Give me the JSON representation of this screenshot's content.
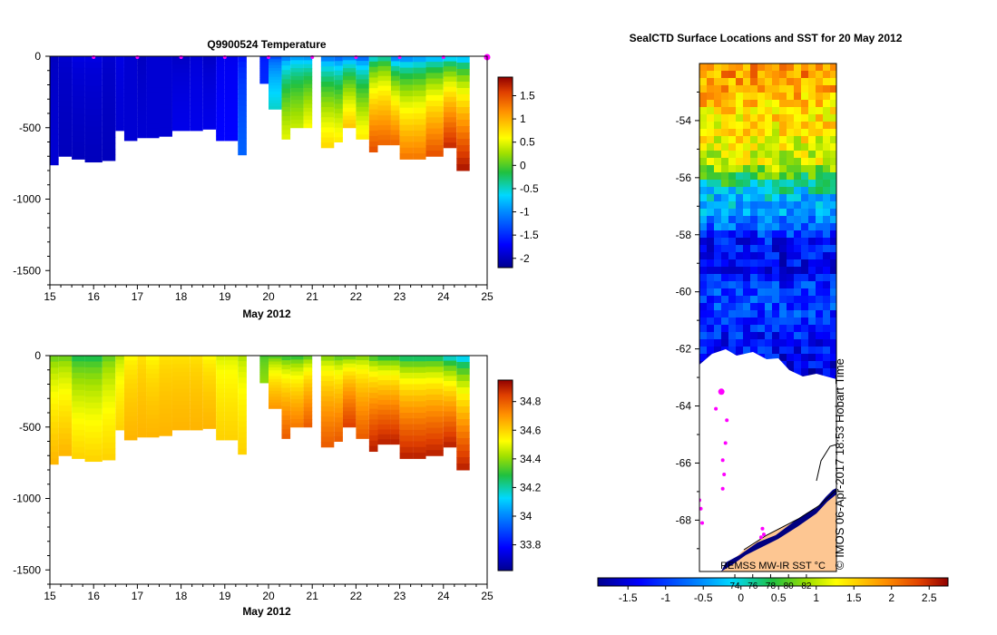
{
  "chart_data": [
    {
      "type": "heatmap",
      "title": "Q9900524  Temperature",
      "xlabel": "May 2012",
      "x_ticks": [
        "15",
        "16",
        "17",
        "18",
        "19",
        "20",
        "21",
        "22",
        "23",
        "24",
        "25"
      ],
      "xlim": [
        15,
        25
      ],
      "ylim": [
        -1600,
        0
      ],
      "y_ticks": [
        "0",
        "-500",
        "-1000",
        "-1500"
      ],
      "colorbar": {
        "ticks": [
          "1.5",
          "1",
          "0.5",
          "0",
          "-0.5",
          "-1",
          "-1.5",
          "-2"
        ],
        "range": [
          -2.2,
          1.9
        ]
      },
      "profile_days": [
        16,
        17,
        18,
        19,
        20,
        21,
        22,
        23,
        24,
        25
      ],
      "profiles": [
        {
          "x0": 15.0,
          "x1": 15.2,
          "depth": 760,
          "surf": -2.0,
          "deep": -1.9
        },
        {
          "x0": 15.2,
          "x1": 15.5,
          "depth": 700,
          "surf": -1.9,
          "deep": -2.0
        },
        {
          "x0": 15.5,
          "x1": 15.8,
          "depth": 720,
          "surf": -1.8,
          "deep": -2.0
        },
        {
          "x0": 15.8,
          "x1": 16.2,
          "depth": 740,
          "surf": -1.8,
          "deep": -2.0
        },
        {
          "x0": 16.2,
          "x1": 16.5,
          "depth": 730,
          "surf": -1.9,
          "deep": -2.0
        },
        {
          "x0": 16.5,
          "x1": 16.7,
          "depth": 520,
          "surf": -1.8,
          "deep": -1.9
        },
        {
          "x0": 16.7,
          "x1": 17.0,
          "depth": 590,
          "surf": -1.9,
          "deep": -1.9
        },
        {
          "x0": 17.0,
          "x1": 17.2,
          "depth": 570,
          "surf": -2.0,
          "deep": -1.9
        },
        {
          "x0": 17.2,
          "x1": 17.5,
          "depth": 570,
          "surf": -1.9,
          "deep": -1.9
        },
        {
          "x0": 17.5,
          "x1": 17.8,
          "depth": 560,
          "surf": -1.9,
          "deep": -1.9
        },
        {
          "x0": 17.8,
          "x1": 18.2,
          "depth": 520,
          "surf": -2.0,
          "deep": -1.8
        },
        {
          "x0": 18.2,
          "x1": 18.5,
          "depth": 520,
          "surf": -1.9,
          "deep": -1.8
        },
        {
          "x0": 18.5,
          "x1": 18.8,
          "depth": 510,
          "surf": -2.0,
          "deep": -1.8
        },
        {
          "x0": 18.8,
          "x1": 19.0,
          "depth": 590,
          "surf": -1.8,
          "deep": -1.7
        },
        {
          "x0": 19.0,
          "x1": 19.3,
          "depth": 590,
          "surf": -1.8,
          "deep": -1.7
        },
        {
          "x0": 19.3,
          "x1": 19.5,
          "depth": 690,
          "surf": -1.7,
          "deep": -1.2
        },
        {
          "x0": 19.8,
          "x1": 20.0,
          "depth": 190,
          "surf": -1.6,
          "deep": -1.5
        },
        {
          "x0": 20.0,
          "x1": 20.3,
          "depth": 370,
          "surf": -1.5,
          "deep": -0.5
        },
        {
          "x0": 20.3,
          "x1": 20.5,
          "depth": 580,
          "surf": -1.4,
          "deep": 0.5
        },
        {
          "x0": 20.5,
          "x1": 20.8,
          "depth": 500,
          "surf": -1.2,
          "deep": 0.4
        },
        {
          "x0": 20.8,
          "x1": 21.0,
          "depth": 500,
          "surf": -1.3,
          "deep": 0.6
        },
        {
          "x0": 21.2,
          "x1": 21.5,
          "depth": 640,
          "surf": -1.5,
          "deep": 0.8
        },
        {
          "x0": 21.5,
          "x1": 21.7,
          "depth": 600,
          "surf": -1.6,
          "deep": 0.7
        },
        {
          "x0": 21.7,
          "x1": 22.0,
          "depth": 500,
          "surf": -1.5,
          "deep": 0.9
        },
        {
          "x0": 22.0,
          "x1": 22.3,
          "depth": 580,
          "surf": -1.6,
          "deep": 0.7
        },
        {
          "x0": 22.3,
          "x1": 22.5,
          "depth": 670,
          "surf": -1.0,
          "deep": 1.5
        },
        {
          "x0": 22.5,
          "x1": 22.8,
          "depth": 620,
          "surf": -0.8,
          "deep": 1.4
        },
        {
          "x0": 22.8,
          "x1": 23.0,
          "depth": 620,
          "surf": -1.6,
          "deep": 1.4
        },
        {
          "x0": 23.0,
          "x1": 23.3,
          "depth": 720,
          "surf": -1.5,
          "deep": 1.3
        },
        {
          "x0": 23.3,
          "x1": 23.6,
          "depth": 720,
          "surf": -1.4,
          "deep": 1.3
        },
        {
          "x0": 23.6,
          "x1": 24.0,
          "depth": 700,
          "surf": -1.3,
          "deep": 1.5
        },
        {
          "x0": 24.0,
          "x1": 24.3,
          "depth": 640,
          "surf": -1.2,
          "deep": 1.7
        },
        {
          "x0": 24.3,
          "x1": 24.6,
          "depth": 800,
          "surf": -1.3,
          "deep": 1.8
        }
      ]
    },
    {
      "type": "heatmap",
      "title": "",
      "xlabel": "May 2012",
      "x_ticks": [
        "15",
        "16",
        "17",
        "18",
        "19",
        "20",
        "21",
        "22",
        "23",
        "24",
        "25"
      ],
      "xlim": [
        15,
        25
      ],
      "ylim": [
        -1600,
        0
      ],
      "y_ticks": [
        "0",
        "-500",
        "-1000",
        "-1500"
      ],
      "colorbar": {
        "ticks": [
          "34.8",
          "34.6",
          "34.4",
          "34.2",
          "34",
          "33.8"
        ],
        "range": [
          33.62,
          34.95
        ]
      },
      "profiles": [
        {
          "x0": 15.0,
          "x1": 15.2,
          "depth": 760,
          "surf": 34.3,
          "deep": 34.65
        },
        {
          "x0": 15.2,
          "x1": 15.5,
          "depth": 700,
          "surf": 34.3,
          "deep": 34.65
        },
        {
          "x0": 15.5,
          "x1": 15.8,
          "depth": 720,
          "surf": 34.2,
          "deep": 34.6
        },
        {
          "x0": 15.8,
          "x1": 16.2,
          "depth": 740,
          "surf": 34.2,
          "deep": 34.6
        },
        {
          "x0": 16.2,
          "x1": 16.5,
          "depth": 730,
          "surf": 34.3,
          "deep": 34.6
        },
        {
          "x0": 16.5,
          "x1": 16.7,
          "depth": 520,
          "surf": 34.4,
          "deep": 34.6
        },
        {
          "x0": 16.7,
          "x1": 17.0,
          "depth": 590,
          "surf": 34.5,
          "deep": 34.65
        },
        {
          "x0": 17.0,
          "x1": 17.2,
          "depth": 570,
          "surf": 34.55,
          "deep": 34.65
        },
        {
          "x0": 17.2,
          "x1": 17.5,
          "depth": 570,
          "surf": 34.5,
          "deep": 34.65
        },
        {
          "x0": 17.5,
          "x1": 17.8,
          "depth": 560,
          "surf": 34.55,
          "deep": 34.65
        },
        {
          "x0": 17.8,
          "x1": 18.2,
          "depth": 520,
          "surf": 34.55,
          "deep": 34.65
        },
        {
          "x0": 18.2,
          "x1": 18.5,
          "depth": 520,
          "surf": 34.55,
          "deep": 34.65
        },
        {
          "x0": 18.5,
          "x1": 18.8,
          "depth": 510,
          "surf": 34.5,
          "deep": 34.65
        },
        {
          "x0": 18.8,
          "x1": 19.0,
          "depth": 590,
          "surf": 34.45,
          "deep": 34.6
        },
        {
          "x0": 19.0,
          "x1": 19.3,
          "depth": 590,
          "surf": 34.45,
          "deep": 34.6
        },
        {
          "x0": 19.3,
          "x1": 19.5,
          "depth": 690,
          "surf": 34.4,
          "deep": 34.6
        },
        {
          "x0": 19.8,
          "x1": 20.0,
          "depth": 190,
          "surf": 34.3,
          "deep": 34.4
        },
        {
          "x0": 20.0,
          "x1": 20.3,
          "depth": 370,
          "surf": 34.25,
          "deep": 34.7
        },
        {
          "x0": 20.3,
          "x1": 20.5,
          "depth": 580,
          "surf": 34.2,
          "deep": 34.8
        },
        {
          "x0": 20.5,
          "x1": 20.8,
          "depth": 500,
          "surf": 34.2,
          "deep": 34.75
        },
        {
          "x0": 20.8,
          "x1": 21.0,
          "depth": 500,
          "surf": 34.25,
          "deep": 34.8
        },
        {
          "x0": 21.2,
          "x1": 21.5,
          "depth": 640,
          "surf": 34.3,
          "deep": 34.8
        },
        {
          "x0": 21.5,
          "x1": 21.7,
          "depth": 600,
          "surf": 34.25,
          "deep": 34.8
        },
        {
          "x0": 21.7,
          "x1": 22.0,
          "depth": 500,
          "surf": 34.25,
          "deep": 34.85
        },
        {
          "x0": 22.0,
          "x1": 22.3,
          "depth": 580,
          "surf": 34.3,
          "deep": 34.8
        },
        {
          "x0": 22.3,
          "x1": 22.5,
          "depth": 670,
          "surf": 34.2,
          "deep": 34.9
        },
        {
          "x0": 22.5,
          "x1": 22.8,
          "depth": 620,
          "surf": 34.15,
          "deep": 34.9
        },
        {
          "x0": 22.8,
          "x1": 23.0,
          "depth": 620,
          "surf": 34.15,
          "deep": 34.9
        },
        {
          "x0": 23.0,
          "x1": 23.3,
          "depth": 720,
          "surf": 34.1,
          "deep": 34.9
        },
        {
          "x0": 23.3,
          "x1": 23.6,
          "depth": 720,
          "surf": 34.1,
          "deep": 34.9
        },
        {
          "x0": 23.6,
          "x1": 24.0,
          "depth": 700,
          "surf": 34.1,
          "deep": 34.9
        },
        {
          "x0": 24.0,
          "x1": 24.3,
          "depth": 640,
          "surf": 34.0,
          "deep": 34.9
        },
        {
          "x0": 24.3,
          "x1": 24.6,
          "depth": 800,
          "surf": 33.95,
          "deep": 34.9
        }
      ]
    },
    {
      "type": "heatmap",
      "title": "SealCTD Surface Locations and SST for 20 May 2012",
      "y_ticks": [
        "-54",
        "-56",
        "-58",
        "-60",
        "-62",
        "-64",
        "-66",
        "-68"
      ],
      "ylim": [
        -69.8,
        -52.0
      ],
      "ice_edge_lat": -62.9,
      "sst_gradient": [
        {
          "lat": -52.0,
          "sst": 1.9
        },
        {
          "lat": -54.0,
          "sst": 1.4
        },
        {
          "lat": -55.3,
          "sst": 1.1
        },
        {
          "lat": -56.0,
          "sst": 0.3
        },
        {
          "lat": -56.5,
          "sst": -0.2
        },
        {
          "lat": -57.3,
          "sst": -0.5
        },
        {
          "lat": -58.0,
          "sst": -1.2
        },
        {
          "lat": -59.0,
          "sst": -1.4
        },
        {
          "lat": -60.0,
          "sst": -0.9
        },
        {
          "lat": -61.0,
          "sst": -1.1
        },
        {
          "lat": -62.0,
          "sst": -1.3
        },
        {
          "lat": -62.9,
          "sst": -1.5
        }
      ],
      "seal_points": [
        {
          "lat": -63.5,
          "lon_frac": 0.16,
          "big": true
        },
        {
          "lat": -64.1,
          "lon_frac": 0.12
        },
        {
          "lat": -64.5,
          "lon_frac": 0.2
        },
        {
          "lat": -65.3,
          "lon_frac": 0.19
        },
        {
          "lat": -65.9,
          "lon_frac": 0.17
        },
        {
          "lat": -66.4,
          "lon_frac": 0.18
        },
        {
          "lat": -66.9,
          "lon_frac": 0.17
        },
        {
          "lat": -67.3,
          "lon_frac": 0.0
        },
        {
          "lat": -67.6,
          "lon_frac": 0.01
        },
        {
          "lat": -68.1,
          "lon_frac": 0.02
        },
        {
          "lat": -68.3,
          "lon_frac": 0.46
        },
        {
          "lat": -68.5,
          "lon_frac": 0.47
        },
        {
          "lat": -68.6,
          "lon_frac": 0.45
        }
      ],
      "colorbar": {
        "ticks": [
          "-1.5",
          "-1",
          "-0.5",
          "0",
          "0.5",
          "1",
          "1.5",
          "2",
          "2.5"
        ],
        "range": [
          -1.9,
          2.75
        ],
        "f_ticks": [
          "74",
          "76",
          "78",
          "80",
          "82"
        ]
      },
      "source_label": "REMSS MW-IR SST °C",
      "watermark": "© IMOS 06-Apr-2017 18:53 Hobart Time"
    }
  ]
}
